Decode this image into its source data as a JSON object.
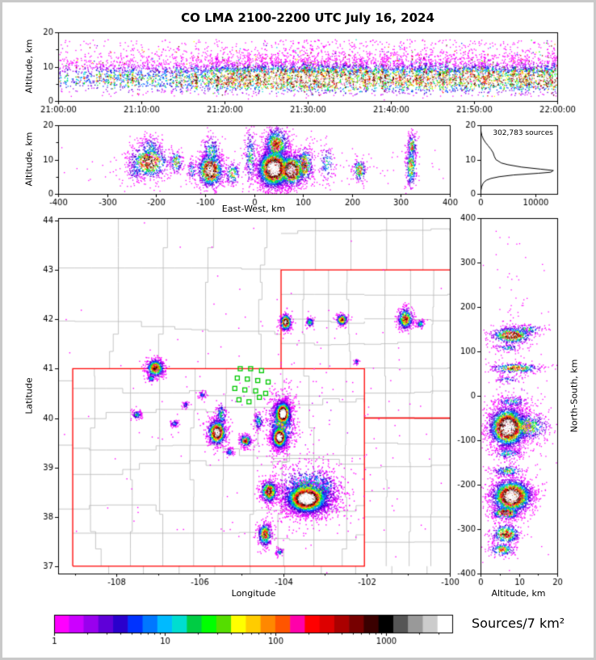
{
  "title": "CO LMA 2100-2200 UTC July 16, 2024",
  "labels": {
    "altitude_km": "Altitude, km",
    "east_west": "East-West, km",
    "longitude": "Longitude",
    "latitude": "Latitude",
    "north_south": "North-South, km",
    "colorbar": "Sources/7 km²",
    "sources_annotation": "302,783 sources"
  },
  "chart_data": [
    {
      "id": "time_height",
      "type": "scatter-density",
      "ylabel": "Altitude, km",
      "x_tick_labels": [
        "21:00:00",
        "21:10:00",
        "21:20:00",
        "21:30:00",
        "21:40:00",
        "21:50:00",
        "22:00:00"
      ],
      "x_tick_seconds": [
        0,
        600,
        1200,
        1800,
        2400,
        3000,
        3600
      ],
      "x_range_seconds": [
        0,
        3600
      ],
      "y_range": [
        0,
        20
      ],
      "y_ticks": [
        0,
        10,
        20
      ],
      "y_minor_ticks": [
        5,
        15
      ],
      "band_center_km": 6.4,
      "band_sigma_km": 1.6,
      "density_ramp": [
        [
          0,
          0.3
        ],
        [
          600,
          0.5
        ],
        [
          1300,
          0.7
        ],
        [
          1500,
          1.0
        ],
        [
          3600,
          1.0
        ]
      ]
    },
    {
      "id": "east_west_height",
      "type": "scatter-density",
      "xlabel": "East-West, km",
      "ylabel": "Altitude, km",
      "x_range": [
        -400,
        400
      ],
      "x_ticks": [
        -400,
        -300,
        -200,
        -100,
        0,
        100,
        200,
        300,
        400
      ],
      "y_range": [
        0,
        20
      ],
      "y_ticks": [
        0,
        10,
        20
      ],
      "y_minor_ticks": [
        5,
        15
      ],
      "clusters": [
        {
          "x": -215,
          "y": 9.5,
          "sx": 22,
          "sy": 2.6,
          "n": 700,
          "peak": 0.72
        },
        {
          "x": -212,
          "y": 13.5,
          "sx": 12,
          "sy": 2.0,
          "n": 150,
          "peak": 0.3
        },
        {
          "x": -245,
          "y": 6.5,
          "sx": 8,
          "sy": 1.5,
          "n": 70,
          "peak": 0.25
        },
        {
          "x": -160,
          "y": 9.5,
          "sx": 7,
          "sy": 1.8,
          "n": 130,
          "peak": 0.5
        },
        {
          "x": -128,
          "y": 7.0,
          "sx": 5,
          "sy": 1.5,
          "n": 60,
          "peak": 0.3
        },
        {
          "x": -90,
          "y": 7.0,
          "sx": 14,
          "sy": 2.6,
          "n": 900,
          "peak": 0.88
        },
        {
          "x": -88,
          "y": 12.5,
          "sx": 10,
          "sy": 2.5,
          "n": 220,
          "peak": 0.35
        },
        {
          "x": -45,
          "y": 6.0,
          "sx": 8,
          "sy": 1.8,
          "n": 140,
          "peak": 0.45
        },
        {
          "x": -8,
          "y": 11.0,
          "sx": 6,
          "sy": 4.5,
          "n": 200,
          "peak": 0.35
        },
        {
          "x": 40,
          "y": 7.5,
          "sx": 18,
          "sy": 3.0,
          "n": 2600,
          "peak": 1.0
        },
        {
          "x": 45,
          "y": 14.5,
          "sx": 14,
          "sy": 2.8,
          "n": 700,
          "peak": 0.55
        },
        {
          "x": 75,
          "y": 7.0,
          "sx": 15,
          "sy": 2.5,
          "n": 1100,
          "peak": 0.92
        },
        {
          "x": 102,
          "y": 8.5,
          "sx": 10,
          "sy": 2.8,
          "n": 350,
          "peak": 0.6
        },
        {
          "x": 148,
          "y": 9.0,
          "sx": 9,
          "sy": 2.8,
          "n": 110,
          "peak": 0.28
        },
        {
          "x": 215,
          "y": 7.0,
          "sx": 7,
          "sy": 1.8,
          "n": 170,
          "peak": 0.55
        },
        {
          "x": 320,
          "y": 8.0,
          "sx": 6,
          "sy": 3.5,
          "n": 280,
          "peak": 0.5
        },
        {
          "x": 322,
          "y": 14.0,
          "sx": 5,
          "sy": 2.0,
          "n": 150,
          "peak": 0.55
        },
        {
          "x": 0,
          "y": 8.0,
          "sx": 260,
          "sy": 4.0,
          "n": 250,
          "peak": 0.05
        }
      ]
    },
    {
      "id": "altitude_histogram",
      "type": "line",
      "annotation": "302,783 sources",
      "x_range": [
        0,
        14000
      ],
      "x_ticks": [
        0,
        10000
      ],
      "y_range": [
        0,
        20
      ],
      "y_ticks": [
        0,
        10,
        20
      ],
      "curve_altitude_km": [
        0,
        1,
        2,
        3,
        3.5,
        4,
        4.5,
        5,
        5.5,
        6,
        6.3,
        6.8,
        7.2,
        7.8,
        8.5,
        9,
        10,
        11,
        12,
        13,
        14,
        15,
        16,
        17,
        18,
        19,
        20
      ],
      "curve_source_counts": [
        30,
        80,
        200,
        450,
        700,
        1100,
        1900,
        3400,
        6000,
        10500,
        12800,
        13300,
        11000,
        7500,
        5000,
        3800,
        2800,
        2500,
        2300,
        1900,
        1400,
        900,
        500,
        250,
        110,
        40,
        10
      ]
    },
    {
      "id": "plan_view_map",
      "type": "scatter-density",
      "xlabel": "Longitude",
      "ylabel": "Latitude",
      "lon_range": [
        -109.4,
        -100.0
      ],
      "lat_range": [
        36.85,
        44.05
      ],
      "x_ticks": [
        -108,
        -106,
        -104,
        -102,
        -100
      ],
      "x_minor_ticks": [
        -109,
        -107,
        -105,
        -103,
        -101
      ],
      "y_ticks": [
        37,
        38,
        39,
        40,
        41,
        42,
        43,
        44
      ],
      "state_borders": [
        [
          [
            -109.05,
            37
          ],
          [
            -109.05,
            41
          ],
          [
            -102.05,
            41
          ],
          [
            -102.05,
            37
          ],
          [
            -109.05,
            37
          ]
        ],
        [
          [
            -104.05,
            41
          ],
          [
            -104.05,
            43
          ],
          [
            -100.0,
            43
          ]
        ],
        [
          [
            -102.05,
            40
          ],
          [
            -100.0,
            40
          ]
        ]
      ],
      "stations_lon_lat": [
        [
          -105.03,
          41.0
        ],
        [
          -104.78,
          41.0
        ],
        [
          -104.52,
          40.96
        ],
        [
          -105.1,
          40.81
        ],
        [
          -104.86,
          40.79
        ],
        [
          -104.61,
          40.76
        ],
        [
          -104.36,
          40.73
        ],
        [
          -105.16,
          40.6
        ],
        [
          -104.92,
          40.57
        ],
        [
          -104.66,
          40.55
        ],
        [
          -104.42,
          40.5
        ],
        [
          -105.06,
          40.37
        ],
        [
          -104.82,
          40.33
        ],
        [
          -104.57,
          40.42
        ]
      ],
      "clusters": [
        {
          "x": -107.08,
          "y": 41.02,
          "sx": 0.12,
          "sy": 0.1,
          "n": 550,
          "peak": 0.6
        },
        {
          "x": -107.18,
          "y": 40.82,
          "sx": 0.05,
          "sy": 0.04,
          "n": 70,
          "peak": 0.3
        },
        {
          "x": -107.52,
          "y": 40.08,
          "sx": 0.06,
          "sy": 0.05,
          "n": 90,
          "peak": 0.28
        },
        {
          "x": -106.62,
          "y": 39.9,
          "sx": 0.05,
          "sy": 0.04,
          "n": 60,
          "peak": 0.25
        },
        {
          "x": -105.95,
          "y": 40.48,
          "sx": 0.05,
          "sy": 0.04,
          "n": 50,
          "peak": 0.2
        },
        {
          "x": -106.35,
          "y": 40.28,
          "sx": 0.04,
          "sy": 0.04,
          "n": 40,
          "peak": 0.2
        },
        {
          "x": -105.6,
          "y": 39.72,
          "sx": 0.12,
          "sy": 0.14,
          "n": 800,
          "peak": 0.85
        },
        {
          "x": -105.5,
          "y": 40.05,
          "sx": 0.07,
          "sy": 0.15,
          "n": 150,
          "peak": 0.3
        },
        {
          "x": -104.92,
          "y": 39.55,
          "sx": 0.08,
          "sy": 0.07,
          "n": 220,
          "peak": 0.55
        },
        {
          "x": -104.02,
          "y": 40.1,
          "sx": 0.1,
          "sy": 0.13,
          "n": 1300,
          "peak": 0.95
        },
        {
          "x": -104.1,
          "y": 39.62,
          "sx": 0.1,
          "sy": 0.12,
          "n": 1000,
          "peak": 0.9
        },
        {
          "x": -104.05,
          "y": 39.9,
          "sx": 0.18,
          "sy": 0.35,
          "n": 700,
          "peak": 0.4
        },
        {
          "x": -103.45,
          "y": 38.38,
          "sx": 0.27,
          "sy": 0.16,
          "n": 3200,
          "peak": 1.0
        },
        {
          "x": -103.4,
          "y": 38.5,
          "sx": 0.45,
          "sy": 0.3,
          "n": 1100,
          "peak": 0.42
        },
        {
          "x": -102.95,
          "y": 38.6,
          "sx": 0.12,
          "sy": 0.15,
          "n": 160,
          "peak": 0.25
        },
        {
          "x": -104.35,
          "y": 38.52,
          "sx": 0.11,
          "sy": 0.12,
          "n": 500,
          "peak": 0.68
        },
        {
          "x": -104.45,
          "y": 37.65,
          "sx": 0.09,
          "sy": 0.13,
          "n": 380,
          "peak": 0.6
        },
        {
          "x": -104.1,
          "y": 37.3,
          "sx": 0.05,
          "sy": 0.04,
          "n": 60,
          "peak": 0.28
        },
        {
          "x": -103.95,
          "y": 41.95,
          "sx": 0.07,
          "sy": 0.09,
          "n": 380,
          "peak": 0.78
        },
        {
          "x": -103.37,
          "y": 41.95,
          "sx": 0.05,
          "sy": 0.05,
          "n": 90,
          "peak": 0.35
        },
        {
          "x": -102.6,
          "y": 42.0,
          "sx": 0.07,
          "sy": 0.06,
          "n": 220,
          "peak": 0.62
        },
        {
          "x": -101.08,
          "y": 42.02,
          "sx": 0.1,
          "sy": 0.12,
          "n": 420,
          "peak": 0.6
        },
        {
          "x": -100.72,
          "y": 41.92,
          "sx": 0.05,
          "sy": 0.05,
          "n": 70,
          "peak": 0.3
        },
        {
          "x": -102.25,
          "y": 41.15,
          "sx": 0.04,
          "sy": 0.03,
          "n": 30,
          "peak": 0.2
        },
        {
          "x": -104.6,
          "y": 39.95,
          "sx": 0.06,
          "sy": 0.1,
          "n": 110,
          "peak": 0.3
        },
        {
          "x": -105.3,
          "y": 39.32,
          "sx": 0.05,
          "sy": 0.05,
          "n": 60,
          "peak": 0.25
        },
        {
          "x": -104.0,
          "y": 40.0,
          "sx": 2.2,
          "sy": 1.6,
          "n": 250,
          "peak": 0.04
        }
      ]
    },
    {
      "id": "north_south_height",
      "type": "scatter-density",
      "xlabel": "Altitude, km",
      "side_label": "North-South, km",
      "x_range": [
        0,
        20
      ],
      "x_ticks": [
        0,
        10,
        20
      ],
      "x_minor_ticks": [
        5,
        15
      ],
      "y_range": [
        -400,
        400
      ],
      "y_ticks": [
        400,
        300,
        200,
        100,
        0,
        -100,
        -200,
        -300,
        -400
      ],
      "clusters": [
        {
          "x": 8,
          "y": 137,
          "sx": 2.8,
          "sy": 10,
          "n": 550,
          "peak": 0.78
        },
        {
          "x": 12,
          "y": 150,
          "sx": 2.5,
          "sy": 6,
          "n": 120,
          "peak": 0.35
        },
        {
          "x": 7,
          "y": 110,
          "sx": 2.0,
          "sy": 5,
          "n": 80,
          "peak": 0.3
        },
        {
          "x": 9,
          "y": 63,
          "sx": 3.5,
          "sy": 6,
          "n": 320,
          "peak": 0.6
        },
        {
          "x": 7,
          "y": 38,
          "sx": 2.0,
          "sy": 4,
          "n": 60,
          "peak": 0.22
        },
        {
          "x": 8,
          "y": -12,
          "sx": 2.5,
          "sy": 7,
          "n": 130,
          "peak": 0.3
        },
        {
          "x": 7,
          "y": -70,
          "sx": 2.6,
          "sy": 24,
          "n": 2600,
          "peak": 1.0
        },
        {
          "x": 12,
          "y": -68,
          "sx": 3.2,
          "sy": 18,
          "n": 500,
          "peak": 0.45
        },
        {
          "x": 7,
          "y": -128,
          "sx": 2.0,
          "sy": 7,
          "n": 140,
          "peak": 0.35
        },
        {
          "x": 7,
          "y": -168,
          "sx": 2.2,
          "sy": 7,
          "n": 180,
          "peak": 0.4
        },
        {
          "x": 8,
          "y": -225,
          "sx": 2.8,
          "sy": 20,
          "n": 2300,
          "peak": 0.96
        },
        {
          "x": 6.5,
          "y": -262,
          "sx": 2.0,
          "sy": 8,
          "n": 350,
          "peak": 0.7
        },
        {
          "x": 6.5,
          "y": -310,
          "sx": 2.0,
          "sy": 12,
          "n": 400,
          "peak": 0.65
        },
        {
          "x": 5.5,
          "y": -345,
          "sx": 1.8,
          "sy": 8,
          "n": 200,
          "peak": 0.5
        },
        {
          "x": 9,
          "y": -30,
          "sx": 4.0,
          "sy": 180,
          "n": 300,
          "peak": 0.05
        }
      ]
    },
    {
      "id": "colorbar",
      "type": "colorbar",
      "label": "Sources/7 km²",
      "scale": "log",
      "tick_labels": [
        "1",
        "10",
        "100",
        "1000"
      ],
      "decades": 3.6,
      "colors": [
        "#ff00ff",
        "#cc00ff",
        "#9900ee",
        "#5f00d8",
        "#2a00cc",
        "#0033ff",
        "#0077ff",
        "#00baff",
        "#00ddd0",
        "#00cc44",
        "#00ff00",
        "#55dd00",
        "#ffff00",
        "#ffcc00",
        "#ff8800",
        "#ff5500",
        "#ff00aa",
        "#ff0000",
        "#dd0000",
        "#aa0000",
        "#770000",
        "#3a0000",
        "#000000",
        "#555555",
        "#999999",
        "#cccccc",
        "#ffffff"
      ]
    }
  ],
  "style_colors": {
    "state_border": "#ff0000",
    "county_border": "#b8b8b8",
    "station_marker": "#00c800",
    "histogram_line": "#000000"
  }
}
